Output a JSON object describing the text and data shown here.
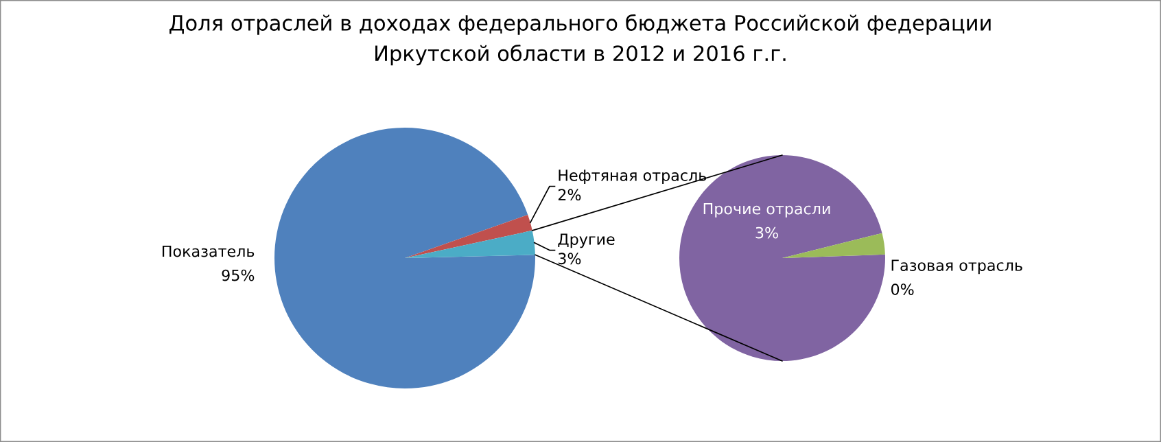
{
  "chart_data": [
    {
      "type": "pie",
      "title": "Доля отраслей в доходах федерального бюджета Российской федерации\nИркутской области в 2012 и 2016 г.г.",
      "categories": [
        "Показатель",
        "Нефтяная отрасль",
        "Другие"
      ],
      "values": [
        95,
        2,
        3
      ],
      "colors": [
        "#4f81bd",
        "#c0504d",
        "#4bacc6"
      ],
      "value_labels": [
        "95%",
        "2%",
        "3%"
      ]
    },
    {
      "type": "pie",
      "categories": [
        "Прочие отрасли",
        "Газовая отрасль"
      ],
      "values": [
        2.9,
        0.1
      ],
      "colors": [
        "#8064a2",
        "#9bbb59"
      ],
      "value_labels": [
        "3%",
        "0%"
      ]
    }
  ]
}
